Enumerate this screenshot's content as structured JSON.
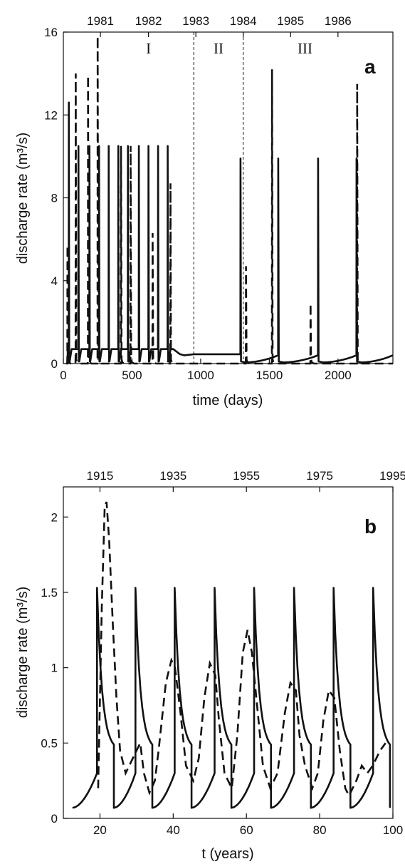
{
  "chart_data": [
    {
      "type": "line",
      "panel_label": "a",
      "xlabel": "time (days)",
      "ylabel": "discharge rate (m³/s)",
      "xlim": [
        0,
        2400
      ],
      "ylim": [
        0,
        16
      ],
      "x_ticks": [
        0,
        500,
        1000,
        1500,
        2000
      ],
      "y_ticks": [
        0,
        4,
        8,
        12,
        16
      ],
      "top_axis": {
        "labels": [
          "1981",
          "1982",
          "1983",
          "1984",
          "1985",
          "1986"
        ],
        "x": [
          270,
          620,
          965,
          1310,
          1655,
          2000
        ]
      },
      "periods": [
        {
          "label": "I",
          "x": 620
        },
        {
          "label": "II",
          "x": 1130
        },
        {
          "label": "III",
          "x": 1760
        }
      ],
      "dividers": [
        950,
        1310
      ],
      "grid": false,
      "series": [
        {
          "style": "solid",
          "peaks_x": [
            40,
            110,
            190,
            260,
            330,
            400,
            470,
            550,
            620,
            690,
            760,
            1290,
            1565,
            1855,
            2135
          ],
          "peaks_y": [
            12.6,
            10.5,
            10.5,
            10.5,
            10.5,
            10.5,
            10.5,
            10.5,
            10.5,
            10.5,
            10.5,
            9.9,
            9.9,
            9.9,
            9.9
          ],
          "plateau_period1": 0.7,
          "plateau_period2": 0.45
        },
        {
          "style": "dashed",
          "peaks_x": [
            30,
            90,
            180,
            250,
            420,
            490,
            650,
            780,
            1330,
            1520,
            1800,
            2140
          ],
          "peaks_y": [
            5.7,
            14.0,
            13.9,
            15.8,
            10.5,
            10.5,
            6.3,
            8.7,
            4.7,
            14.2,
            2.9,
            13.5
          ]
        }
      ]
    },
    {
      "type": "line",
      "panel_label": "b",
      "xlabel": "t (years)",
      "ylabel": "discharge rate (m³/s)",
      "xlim": [
        10,
        100
      ],
      "ylim": [
        0,
        2.2
      ],
      "x_ticks": [
        20,
        40,
        60,
        80,
        100
      ],
      "y_ticks": [
        0,
        0.5,
        1,
        1.5,
        2
      ],
      "y_tick_labels": [
        "0",
        "0.5",
        "1",
        "1.5",
        "2"
      ],
      "top_axis": {
        "labels": [
          "1915",
          "1935",
          "1955",
          "1975",
          "1995"
        ],
        "x": [
          20,
          40,
          60,
          80,
          100
        ]
      },
      "grid": false,
      "series": [
        {
          "style": "solid",
          "cycle_peaks_x": [
            19.2,
            29.7,
            40.4,
            51.3,
            62.1,
            73.0,
            83.8,
            94.6
          ],
          "peak_y": 1.53,
          "cycle_floor_y": 0.07,
          "start": [
            12.5,
            0.07
          ]
        },
        {
          "style": "dashed",
          "x": [
            19.5,
            20.5,
            21.3,
            21.8,
            22.5,
            23.5,
            24.5,
            25.5,
            27,
            28,
            31,
            32,
            33.5,
            35,
            36,
            38,
            39.5,
            40.5,
            42,
            43.5,
            45.5,
            47,
            48.5,
            50,
            51.5,
            52.5,
            54,
            56,
            57.5,
            59,
            60.3,
            61.5,
            62.5,
            64.5,
            66.5,
            68.5,
            70.5,
            72,
            73.5,
            74.5,
            76,
            78,
            79.5,
            81,
            82.5,
            84,
            85.5,
            87,
            88,
            90,
            91.5,
            93,
            94.5,
            96.5,
            98
          ],
          "y": [
            0.2,
            1.4,
            2.07,
            2.1,
            1.85,
            1.3,
            0.8,
            0.45,
            0.3,
            0.35,
            0.5,
            0.3,
            0.17,
            0.25,
            0.45,
            0.9,
            1.05,
            1.0,
            0.7,
            0.35,
            0.25,
            0.4,
            0.8,
            1.03,
            0.95,
            0.65,
            0.3,
            0.2,
            0.55,
            1.1,
            1.25,
            1.1,
            0.85,
            0.35,
            0.2,
            0.3,
            0.7,
            0.9,
            0.85,
            0.55,
            0.35,
            0.2,
            0.3,
            0.65,
            0.85,
            0.8,
            0.45,
            0.2,
            0.15,
            0.25,
            0.35,
            0.3,
            0.35,
            0.45,
            0.5
          ]
        }
      ]
    }
  ]
}
